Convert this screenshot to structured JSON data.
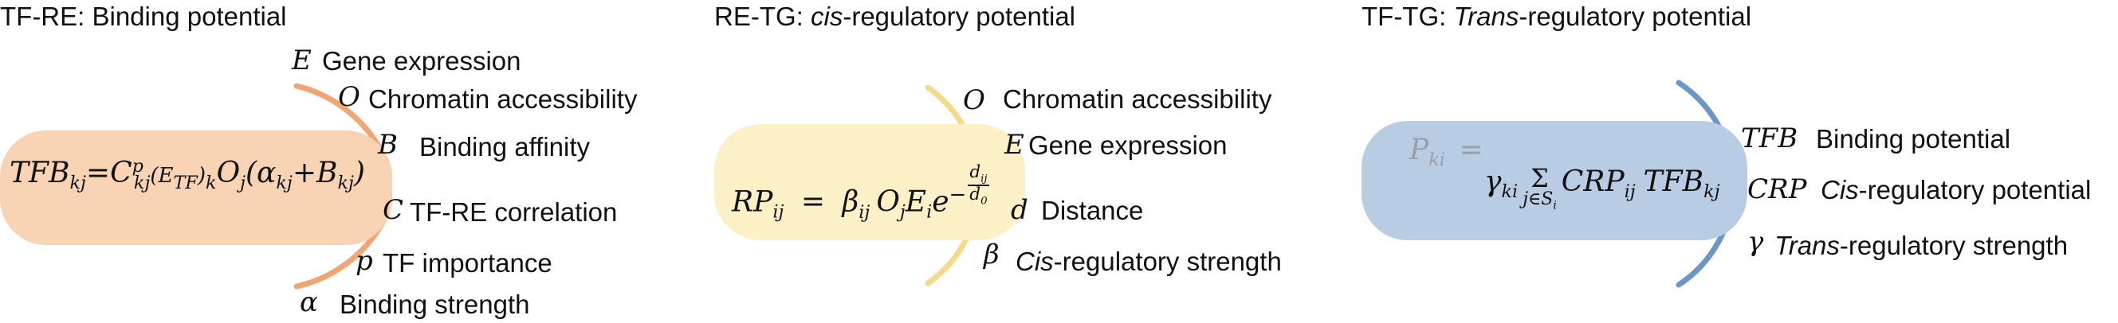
{
  "colors": {
    "panel1_pill": "#f8d3b4",
    "panel1_arc": "#f0a671",
    "panel2_pill": "#fbf0c6",
    "panel2_arc": "#f4da8a",
    "panel3_pill": "#b8cce4",
    "panel3_arc": "#6a96c8",
    "faded_text": "#9aa0a6"
  },
  "panel1": {
    "title_prefix": "TF-RE: ",
    "title_main": "Binding potential",
    "formula": {
      "lhs": "TFB",
      "lhs_sub": "kj",
      "eq": "=",
      "c": "C",
      "c_sup": "p",
      "c_sub": "kj",
      "e_open": "(E",
      "e_sub": "TF",
      "e_close": ")",
      "k_sub": "k",
      "o": "O",
      "o_sub": "j",
      "paren_open": "(α",
      "alpha_sub": "kj",
      "plus": "+B",
      "b_sub": "kj",
      "paren_close": ")"
    },
    "items": [
      {
        "var": "E",
        "label": "Gene expression"
      },
      {
        "var": "O",
        "label": "Chromatin accessibility"
      },
      {
        "var": "B",
        "label": "Binding affinity"
      },
      {
        "var": "C",
        "label": "TF-RE correlation"
      },
      {
        "var": "p",
        "label": "TF importance"
      },
      {
        "var": "α",
        "label": "Binding strength"
      }
    ]
  },
  "panel2": {
    "title_prefix": "RE-TG: ",
    "title_ital": "cis",
    "title_rest": "-regulatory potential",
    "formula": {
      "lhs": "RP",
      "lhs_sub": "ij",
      "eq": "=",
      "beta": "β",
      "beta_sub": "ij",
      "o": "O",
      "o_sub": "j",
      "e": "E",
      "e_sub": "i",
      "exp_base": "e",
      "exp_minus": "−",
      "frac_num": "d",
      "frac_num_sub": "ij",
      "frac_den": "d",
      "frac_den_sub": "0"
    },
    "items": [
      {
        "var": "O",
        "label": "Chromatin accessibility",
        "label_ital": "",
        "label_rest": ""
      },
      {
        "var": "E",
        "label": "Gene expression",
        "label_ital": "",
        "label_rest": ""
      },
      {
        "var": "d",
        "label": "Distance",
        "label_ital": "",
        "label_rest": ""
      },
      {
        "var": "β",
        "label": "",
        "label_ital": "Cis",
        "label_rest": "-regulatory strength"
      }
    ]
  },
  "panel3": {
    "title_prefix": "TF-TG: ",
    "title_ital": "Trans",
    "title_rest": "-regulatory potential",
    "formula": {
      "lhs": "P",
      "lhs_sub": "ki",
      "eq": "=",
      "gamma": "γ",
      "gamma_sub": "ki",
      "sum": "Σ",
      "sum_under": "j∈S",
      "sum_under_sub": "i",
      "crp": "CRP",
      "crp_sub": "ij",
      "tfb": "TFB",
      "tfb_sub": "kj"
    },
    "items": [
      {
        "var": "TFB",
        "label": "Binding potential",
        "label_ital": "",
        "label_rest": ""
      },
      {
        "var": "CRP",
        "label": "",
        "label_ital": "Cis",
        "label_rest": "-regulatory potential"
      },
      {
        "var": "γ",
        "label": "",
        "label_ital": "Trans",
        "label_rest": "-regulatory strength"
      }
    ]
  }
}
